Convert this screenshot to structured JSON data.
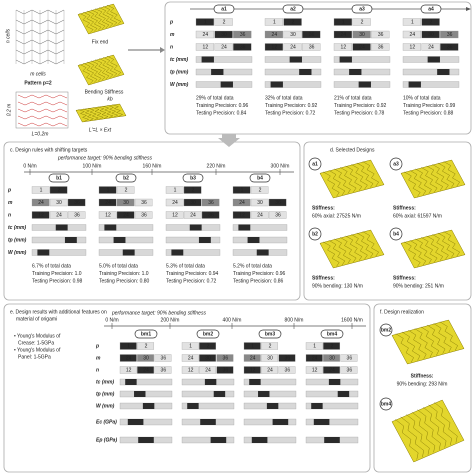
{
  "panel_a": {
    "n_cells": "n cells",
    "m_cells": "m cells",
    "pattern": "Pattern p=2",
    "height": "0.2 m",
    "length": "L=0.2m",
    "extended": "L'=L × Ext",
    "fix_end": "Fix end",
    "bending": "Bending Stiffness",
    "kb": "kb"
  },
  "panel_b": {
    "row_labels": [
      "p",
      "m",
      "n",
      "tc (mm)",
      "tp (mm)",
      "W (mm)"
    ],
    "options": {
      "p": [
        "1",
        "2"
      ],
      "m": [
        "24",
        "30",
        "36"
      ],
      "n": [
        "12",
        "24",
        "36"
      ]
    },
    "designs": [
      {
        "id": "a1",
        "data": "29% of total data",
        "training": "Training Precision: 0.96",
        "testing": "Testing Precision: 0.84"
      },
      {
        "id": "a2",
        "data": "32% of total data",
        "training": "Training Precision: 0.92",
        "testing": "Testing Precision: 0.72"
      },
      {
        "id": "a3",
        "data": "21% of total data",
        "training": "Training Precision: 0.92",
        "testing": "Testing Precision: 0.78"
      },
      {
        "id": "a4",
        "data": "10% of total data",
        "training": "Training Precision: 0.99",
        "testing": "Testing Precision: 0.88"
      }
    ]
  },
  "panel_c": {
    "title": "c. Design rules with shifting targets",
    "target": "performance target: 90% bending stiffness",
    "axis_labels": [
      "0 N/m",
      "100 N/m",
      "160 N/m",
      "220 N/m",
      "300 N/m"
    ],
    "designs": [
      {
        "id": "b1",
        "data": "6.7% of total data",
        "training": "Training Precision: 1.0",
        "testing": "Testing Precision: 0.98"
      },
      {
        "id": "b2",
        "data": "5.0% of total data",
        "training": "Training Precision: 1.0",
        "testing": "Testing Precision: 0.80"
      },
      {
        "id": "b3",
        "data": "5.3% of total data",
        "training": "Training Precision: 0.94",
        "testing": "Testing Precision: 0.72"
      },
      {
        "id": "b4",
        "data": "5.2% of total data",
        "training": "Training Precision: 0.96",
        "testing": "Testing Precision: 0.86"
      }
    ]
  },
  "panel_d": {
    "title": "d. Selected Designs",
    "designs": [
      {
        "id": "a1",
        "heading": "Stiffness:",
        "value": "60% axial: 27525 N/m"
      },
      {
        "id": "a3",
        "heading": "Stiffness:",
        "value": "60% axial: 61597 N/m"
      },
      {
        "id": "b2",
        "heading": "Stiffness:",
        "value": "90% bending: 130 N/m"
      },
      {
        "id": "b4",
        "heading": "Stiffness:",
        "value": "90% bending: 251 N/m"
      }
    ]
  },
  "panel_e": {
    "title": [
      "e. Design results with additional features on",
      "material of origami"
    ],
    "notes": [
      "• Young's Modulus of",
      "Crease: 1-5GPa",
      "• Young's Modulus of",
      "Panel: 1-5GPa"
    ],
    "target": "performance target: 90% bending stiffness",
    "axis_labels": [
      "0 N/m",
      "200 N/m",
      "400 N/m",
      "800 N/m",
      "1600 N/m"
    ],
    "extra_rows": [
      "Ec (GPa)",
      "Ep (GPa)"
    ],
    "designs": [
      {
        "id": "bm1"
      },
      {
        "id": "bm2"
      },
      {
        "id": "bm3"
      },
      {
        "id": "bm4"
      }
    ]
  },
  "panel_f": {
    "title": "f. Design realization",
    "designs": [
      {
        "id": "bm2",
        "heading": "Stiffness:",
        "value": "90% bending: 293 N/m"
      },
      {
        "id": "bm4"
      }
    ]
  }
}
